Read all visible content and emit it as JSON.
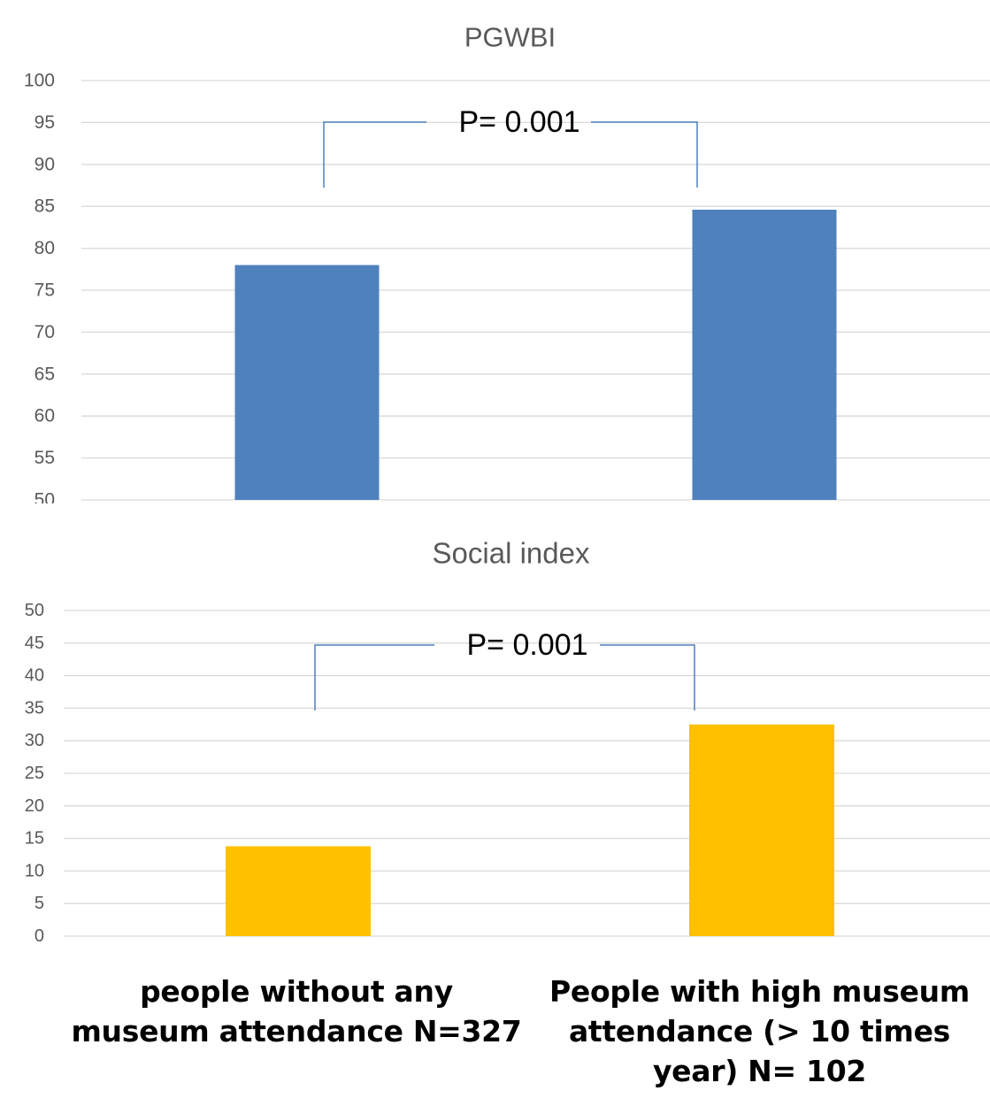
{
  "chart_data": [
    {
      "type": "bar",
      "title": "PGWBI",
      "categories": [
        "people without any museum attendance N=327",
        "People with high museum attendance (> 10 times year) N= 102"
      ],
      "values": [
        78,
        84.6
      ],
      "ylim": [
        50,
        100
      ],
      "yticks": [
        100,
        95,
        90,
        85,
        80,
        75,
        70,
        65,
        60,
        55,
        50
      ],
      "grid": true,
      "bar_color": "#4F81BD",
      "annotation": "P= 0.001"
    },
    {
      "type": "bar",
      "title": "Social index",
      "categories": [
        "people without any museum attendance N=327",
        "People with high museum attendance (> 10 times year) N= 102"
      ],
      "values": [
        13.8,
        32.5
      ],
      "ylim": [
        0,
        50
      ],
      "yticks": [
        50,
        45,
        40,
        35,
        30,
        25,
        20,
        15,
        10,
        5,
        0
      ],
      "grid": true,
      "bar_color": "#FFC000",
      "annotation": "P= 0.001"
    }
  ],
  "category_labels": [
    "people without any museum attendance N=327",
    "People with high museum attendance (> 10 times year) N= 102"
  ]
}
